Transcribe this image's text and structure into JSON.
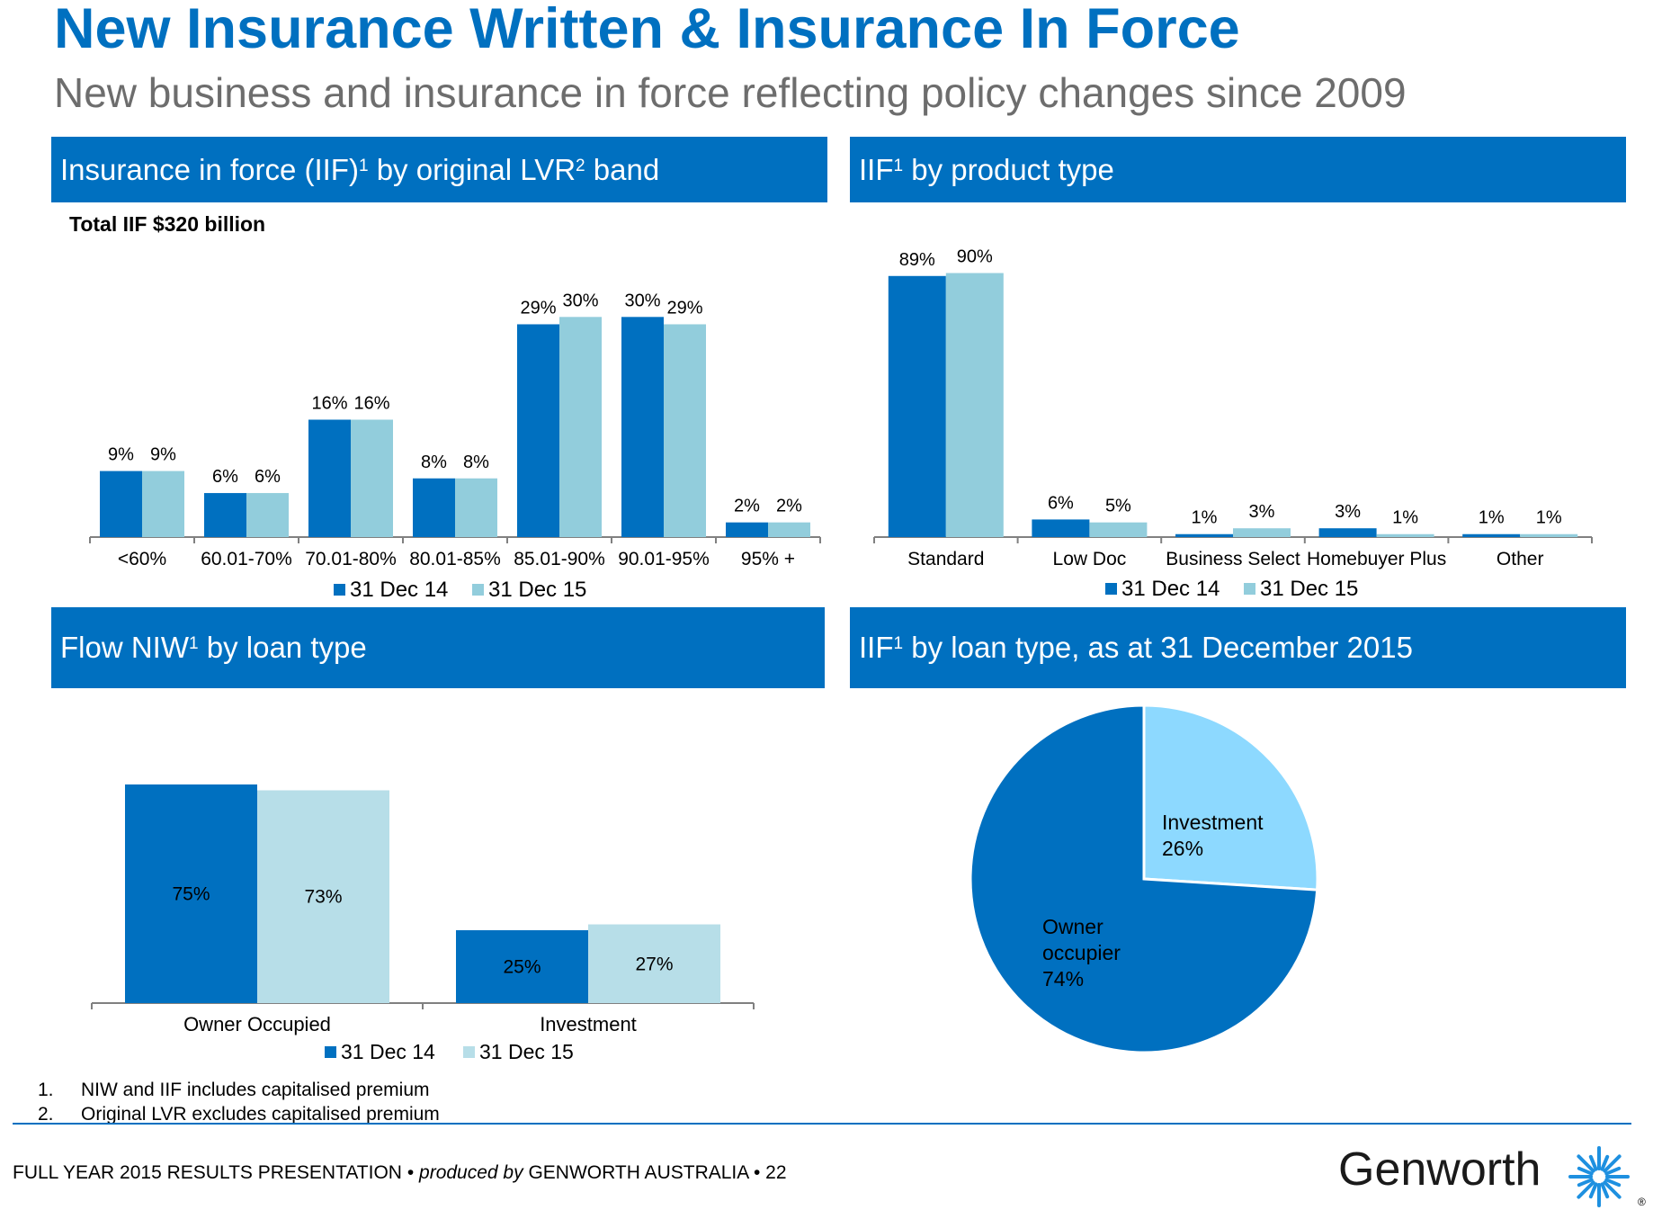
{
  "header": {
    "title": "New Insurance Written & Insurance In Force",
    "subtitle": "New business and insurance in force reflecting policy changes since 2009"
  },
  "colors": {
    "brand_blue": "#0070C0",
    "series_dark": "#0070C0",
    "series_light": "#92CDDC",
    "series_light_alt": "#B7DEE8",
    "pie_light": "#8DD9FF"
  },
  "panels": {
    "lvr": {
      "title": "Insurance in force (IIF)",
      "sup1": "1",
      "mid": " by original LVR",
      "sup2": "2",
      "end": " band",
      "total": "Total IIF $320 billion"
    },
    "product": {
      "title": "IIF",
      "sup1": "1",
      "end": " by product  type"
    },
    "flow": {
      "title": "Flow NIW",
      "sup1": "1",
      "end": " by loan type"
    },
    "loan": {
      "title": "IIF",
      "sup1": "1",
      "end": " by loan type, as at 31 December 2015"
    }
  },
  "chart_data": [
    {
      "id": "iif_by_lvr",
      "type": "bar",
      "categories": [
        "<60%",
        "60.01-70%",
        "70.01-80%",
        "80.01-85%",
        "85.01-90%",
        "90.01-95%",
        "95% +"
      ],
      "series": [
        {
          "name": "31 Dec 14",
          "values": [
            9,
            6,
            16,
            8,
            29,
            30,
            2
          ],
          "labels": [
            "9%",
            "6%",
            "16%",
            "8%",
            "29%",
            "30%",
            "2%"
          ]
        },
        {
          "name": "31 Dec 15",
          "values": [
            9,
            6,
            16,
            8,
            30,
            29,
            2
          ],
          "labels": [
            "9%",
            "6%",
            "16%",
            "8%",
            "30%",
            "29%",
            "2%"
          ]
        }
      ],
      "ylim": [
        0,
        32
      ],
      "legend": "bottom-center"
    },
    {
      "id": "iif_by_product",
      "type": "bar",
      "categories": [
        "Standard",
        "Low Doc",
        "Business Select",
        "Homebuyer Plus",
        "Other"
      ],
      "series": [
        {
          "name": "31 Dec 14",
          "values": [
            89,
            6,
            1,
            3,
            1
          ],
          "labels": [
            "89%",
            "6%",
            "1%",
            "3%",
            "1%"
          ]
        },
        {
          "name": "31 Dec 15",
          "values": [
            90,
            5,
            3,
            1,
            1
          ],
          "labels": [
            "90%",
            "5%",
            "3%",
            "1%",
            "1%"
          ]
        }
      ],
      "ylim": [
        0,
        92
      ],
      "legend": "bottom-center"
    },
    {
      "id": "flow_niw_by_loan",
      "type": "bar",
      "categories": [
        "Owner Occupied",
        "Investment"
      ],
      "series": [
        {
          "name": "31 Dec 14",
          "values": [
            75,
            25
          ],
          "labels": [
            "75%",
            "25%"
          ]
        },
        {
          "name": "31 Dec 15",
          "values": [
            73,
            27
          ],
          "labels": [
            "73%",
            "27%"
          ]
        }
      ],
      "ylim": [
        0,
        75
      ],
      "legend": "bottom-center"
    },
    {
      "id": "iif_by_loan_type",
      "type": "pie",
      "slices": [
        {
          "name": "Investment",
          "value": 26,
          "label_line1": "Investment",
          "label_line2": "26%"
        },
        {
          "name": "Owner occupier",
          "value": 74,
          "label_line1": "Owner",
          "label_line2": "occupier",
          "label_line3": "74%"
        }
      ]
    }
  ],
  "footnotes": [
    {
      "num": "1.",
      "text": "NIW and IIF includes capitalised premium"
    },
    {
      "num": "2.",
      "text": "Original LVR excludes capitalised premium"
    }
  ],
  "footer": {
    "presentation": "FULL YEAR 2015 RESULTS PRESENTATION",
    "sep1": " • ",
    "produced_by": "produced by",
    "company": " GENWORTH AUSTRALIA",
    "sep2": " • ",
    "page": "22"
  },
  "logo": {
    "text": "Genworth",
    "mark": "®"
  }
}
